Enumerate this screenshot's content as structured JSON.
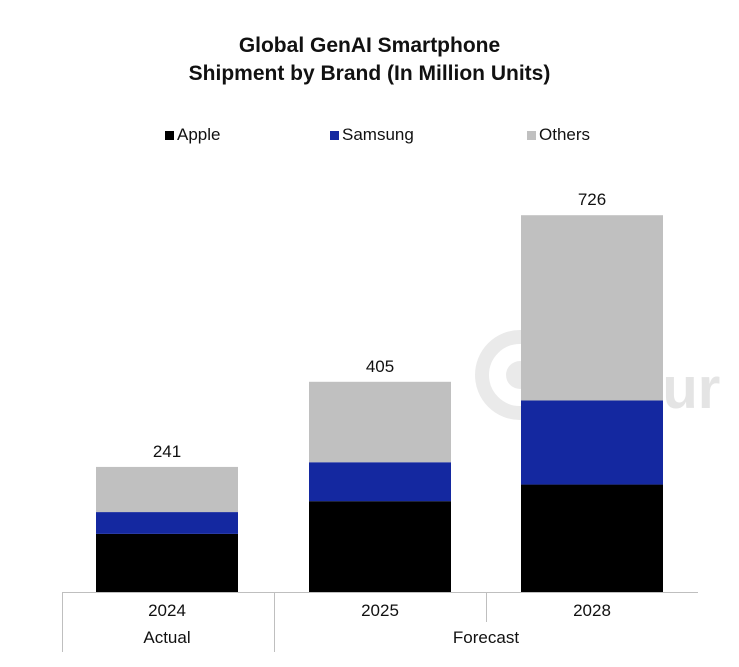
{
  "chart_data": {
    "type": "bar",
    "stacked": true,
    "title_line1": "Global GenAI Smartphone",
    "title_line2": "Shipment by Brand (In Million Units)",
    "categories": [
      "2024",
      "2025",
      "2028"
    ],
    "category_groups": [
      {
        "label": "Actual",
        "categories": [
          "2024"
        ]
      },
      {
        "label": "Forecast",
        "categories": [
          "2025",
          "2028"
        ]
      }
    ],
    "series": [
      {
        "name": "Apple",
        "color": "#000000",
        "values": [
          112,
          175,
          207
        ]
      },
      {
        "name": "Samsung",
        "color": "#1428a0",
        "values": [
          42,
          75,
          162
        ]
      },
      {
        "name": "Others",
        "color": "#c0c0c0",
        "values": [
          87,
          155,
          357
        ]
      }
    ],
    "totals": [
      "241",
      "405",
      "726"
    ],
    "legend_position": "top",
    "grid": false
  },
  "watermark": {
    "text": "Cour"
  }
}
